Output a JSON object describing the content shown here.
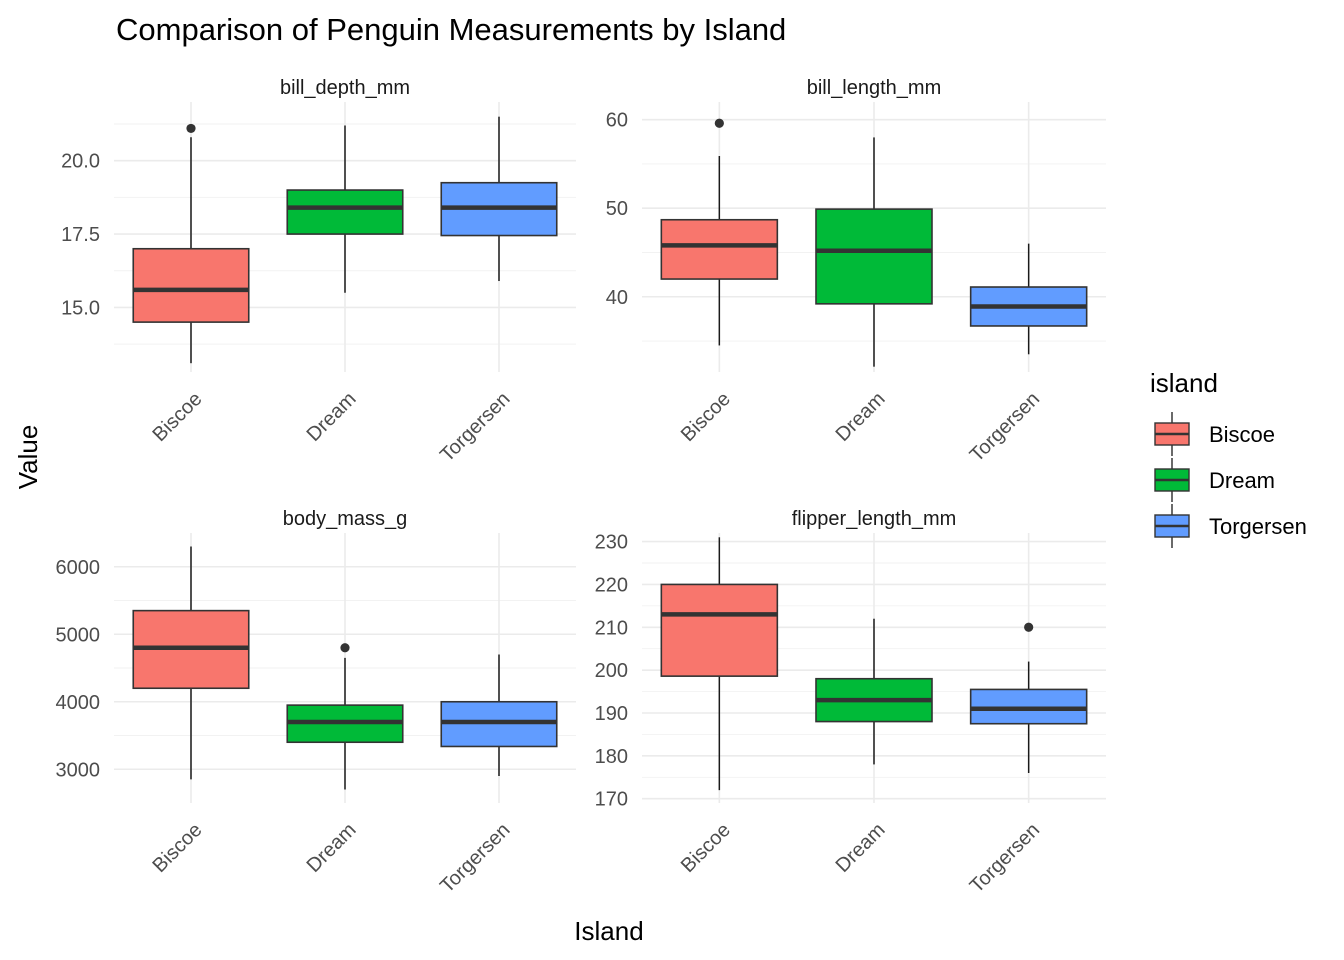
{
  "chart_data": {
    "type": "boxplot",
    "title": "Comparison of Penguin Measurements by Island",
    "xlabel": "Island",
    "ylabel": "Value",
    "categories": [
      "Biscoe",
      "Dream",
      "Torgersen"
    ],
    "legend": {
      "title": "island",
      "placement": "right",
      "items": [
        {
          "label": "Biscoe",
          "color": "#F8766D"
        },
        {
          "label": "Dream",
          "color": "#00BA38"
        },
        {
          "label": "Torgersen",
          "color": "#619CFF"
        }
      ]
    },
    "grid": true,
    "facets": [
      {
        "name": "bill_depth_mm",
        "ylim": [
          12.8,
          22.0
        ],
        "major_ticks": [
          15.0,
          17.5,
          20.0
        ],
        "tick_labels": [
          "15.0",
          "17.5",
          "20.0"
        ],
        "boxes": [
          {
            "category": "Biscoe",
            "min": 13.1,
            "q1": 14.5,
            "median": 15.6,
            "q3": 17.0,
            "max": 20.8,
            "outliers": [
              21.1
            ]
          },
          {
            "category": "Dream",
            "min": 15.5,
            "q1": 17.5,
            "median": 18.4,
            "q3": 19.0,
            "max": 21.2,
            "outliers": []
          },
          {
            "category": "Torgersen",
            "min": 15.9,
            "q1": 17.45,
            "median": 18.4,
            "q3": 19.25,
            "max": 21.5,
            "outliers": []
          }
        ]
      },
      {
        "name": "bill_length_mm",
        "ylim": [
          31.5,
          62.0
        ],
        "major_ticks": [
          40,
          50,
          60
        ],
        "tick_labels": [
          "40",
          "50",
          "60"
        ],
        "boxes": [
          {
            "category": "Biscoe",
            "min": 34.5,
            "q1": 42.0,
            "median": 45.8,
            "q3": 48.7,
            "max": 55.9,
            "outliers": [
              59.6
            ]
          },
          {
            "category": "Dream",
            "min": 32.1,
            "q1": 39.2,
            "median": 45.2,
            "q3": 49.9,
            "max": 58.0,
            "outliers": []
          },
          {
            "category": "Torgersen",
            "min": 33.5,
            "q1": 36.7,
            "median": 38.9,
            "q3": 41.1,
            "max": 46.0,
            "outliers": []
          }
        ]
      },
      {
        "name": "body_mass_g",
        "ylim": [
          2500,
          6500
        ],
        "major_ticks": [
          3000,
          4000,
          5000,
          6000
        ],
        "tick_labels": [
          "3000",
          "4000",
          "5000",
          "6000"
        ],
        "boxes": [
          {
            "category": "Biscoe",
            "min": 2850,
            "q1": 4200,
            "median": 4800,
            "q3": 5350,
            "max": 6300,
            "outliers": []
          },
          {
            "category": "Dream",
            "min": 2700,
            "q1": 3400,
            "median": 3700,
            "q3": 3950,
            "max": 4650,
            "outliers": [
              4800
            ]
          },
          {
            "category": "Torgersen",
            "min": 2900,
            "q1": 3337.5,
            "median": 3700,
            "q3": 4000,
            "max": 4700,
            "outliers": []
          }
        ]
      },
      {
        "name": "flipper_length_mm",
        "ylim": [
          169,
          232
        ],
        "major_ticks": [
          170,
          180,
          190,
          200,
          210,
          220,
          230
        ],
        "tick_labels": [
          "170",
          "180",
          "190",
          "200",
          "210",
          "220",
          "230"
        ],
        "boxes": [
          {
            "category": "Biscoe",
            "min": 172,
            "q1": 198.6,
            "median": 213,
            "q3": 220,
            "max": 231,
            "outliers": []
          },
          {
            "category": "Dream",
            "min": 178,
            "q1": 188,
            "median": 193,
            "q3": 198,
            "max": 212,
            "outliers": []
          },
          {
            "category": "Torgersen",
            "min": 176,
            "q1": 187.5,
            "median": 191,
            "q3": 195.5,
            "max": 202,
            "outliers": [
              210
            ]
          }
        ]
      }
    ]
  }
}
